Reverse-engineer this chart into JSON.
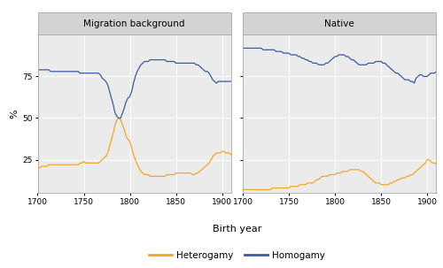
{
  "panel_titles": [
    "Migration background",
    "Native"
  ],
  "xlabel": "Birth year",
  "ylabel": "%",
  "xlim": [
    1700,
    1910
  ],
  "ylim": [
    5,
    100
  ],
  "yticks": [
    25,
    50,
    75
  ],
  "xticks": [
    1700,
    1750,
    1800,
    1850,
    1900
  ],
  "heterogamy_color": "#F5A623",
  "homogamy_color": "#3B5BA5",
  "background_color": "#EBEBEB",
  "panel_header_color": "#D3D3D3",
  "grid_color": "#FFFFFF",
  "legend_labels": [
    "Heterogamy",
    "Homogamy"
  ],
  "mig_heterogamy_x": [
    1700,
    1702,
    1704,
    1706,
    1708,
    1710,
    1712,
    1714,
    1716,
    1718,
    1720,
    1722,
    1724,
    1726,
    1728,
    1730,
    1732,
    1734,
    1736,
    1738,
    1740,
    1742,
    1744,
    1746,
    1748,
    1750,
    1752,
    1754,
    1756,
    1758,
    1760,
    1762,
    1764,
    1766,
    1768,
    1770,
    1772,
    1774,
    1776,
    1778,
    1780,
    1782,
    1784,
    1786,
    1788,
    1790,
    1792,
    1794,
    1796,
    1798,
    1800,
    1802,
    1804,
    1806,
    1808,
    1810,
    1812,
    1814,
    1816,
    1818,
    1820,
    1822,
    1824,
    1826,
    1828,
    1830,
    1832,
    1834,
    1836,
    1838,
    1840,
    1842,
    1844,
    1846,
    1848,
    1850,
    1852,
    1854,
    1856,
    1858,
    1860,
    1862,
    1864,
    1866,
    1868,
    1870,
    1872,
    1874,
    1876,
    1878,
    1880,
    1882,
    1884,
    1886,
    1888,
    1890,
    1892,
    1894,
    1896,
    1898,
    1900,
    1902,
    1904,
    1906,
    1908,
    1910
  ],
  "mig_heterogamy_y": [
    20,
    20,
    21,
    21,
    21,
    21,
    22,
    22,
    22,
    22,
    22,
    22,
    22,
    22,
    22,
    22,
    22,
    22,
    22,
    22,
    22,
    22,
    22,
    23,
    23,
    24,
    23,
    23,
    23,
    23,
    23,
    23,
    23,
    23,
    24,
    25,
    26,
    27,
    29,
    33,
    37,
    41,
    46,
    49,
    50,
    49,
    46,
    43,
    39,
    37,
    36,
    32,
    28,
    25,
    22,
    20,
    18,
    17,
    16,
    16,
    16,
    15,
    15,
    15,
    15,
    15,
    15,
    15,
    15,
    15,
    16,
    16,
    16,
    16,
    16,
    17,
    17,
    17,
    17,
    17,
    17,
    17,
    17,
    17,
    16,
    16,
    17,
    17,
    18,
    19,
    20,
    21,
    22,
    23,
    25,
    27,
    28,
    29,
    29,
    29,
    30,
    30,
    29,
    29,
    29,
    28
  ],
  "mig_homogamy_x": [
    1700,
    1702,
    1704,
    1706,
    1708,
    1710,
    1712,
    1714,
    1716,
    1718,
    1720,
    1722,
    1724,
    1726,
    1728,
    1730,
    1732,
    1734,
    1736,
    1738,
    1740,
    1742,
    1744,
    1746,
    1748,
    1750,
    1752,
    1754,
    1756,
    1758,
    1760,
    1762,
    1764,
    1766,
    1768,
    1770,
    1772,
    1774,
    1776,
    1778,
    1780,
    1782,
    1784,
    1786,
    1788,
    1790,
    1792,
    1794,
    1796,
    1798,
    1800,
    1802,
    1804,
    1806,
    1808,
    1810,
    1812,
    1814,
    1816,
    1818,
    1820,
    1822,
    1824,
    1826,
    1828,
    1830,
    1832,
    1834,
    1836,
    1838,
    1840,
    1842,
    1844,
    1846,
    1848,
    1850,
    1852,
    1854,
    1856,
    1858,
    1860,
    1862,
    1864,
    1866,
    1868,
    1870,
    1872,
    1874,
    1876,
    1878,
    1880,
    1882,
    1884,
    1886,
    1888,
    1890,
    1892,
    1894,
    1896,
    1898,
    1900,
    1902,
    1904,
    1906,
    1908,
    1910
  ],
  "mig_homogamy_y": [
    79,
    79,
    79,
    79,
    79,
    79,
    79,
    78,
    78,
    78,
    78,
    78,
    78,
    78,
    78,
    78,
    78,
    78,
    78,
    78,
    78,
    78,
    78,
    77,
    77,
    77,
    77,
    77,
    77,
    77,
    77,
    77,
    77,
    77,
    76,
    74,
    73,
    72,
    70,
    66,
    62,
    58,
    53,
    51,
    50,
    50,
    53,
    56,
    60,
    62,
    63,
    66,
    71,
    75,
    78,
    80,
    82,
    83,
    84,
    84,
    84,
    85,
    85,
    85,
    85,
    85,
    85,
    85,
    85,
    85,
    84,
    84,
    84,
    84,
    84,
    83,
    83,
    83,
    83,
    83,
    83,
    83,
    83,
    83,
    83,
    83,
    82,
    82,
    81,
    80,
    79,
    78,
    78,
    77,
    75,
    73,
    72,
    71,
    72,
    72,
    72,
    72,
    72,
    72,
    72,
    72
  ],
  "nat_heterogamy_x": [
    1700,
    1702,
    1704,
    1706,
    1708,
    1710,
    1712,
    1714,
    1716,
    1718,
    1720,
    1722,
    1724,
    1726,
    1728,
    1730,
    1732,
    1734,
    1736,
    1738,
    1740,
    1742,
    1744,
    1746,
    1748,
    1750,
    1752,
    1754,
    1756,
    1758,
    1760,
    1762,
    1764,
    1766,
    1768,
    1770,
    1772,
    1774,
    1776,
    1778,
    1780,
    1782,
    1784,
    1786,
    1788,
    1790,
    1792,
    1794,
    1796,
    1798,
    1800,
    1802,
    1804,
    1806,
    1808,
    1810,
    1812,
    1814,
    1816,
    1818,
    1820,
    1822,
    1824,
    1826,
    1828,
    1830,
    1832,
    1834,
    1836,
    1838,
    1840,
    1842,
    1844,
    1846,
    1848,
    1850,
    1852,
    1854,
    1856,
    1858,
    1860,
    1862,
    1864,
    1866,
    1868,
    1870,
    1872,
    1874,
    1876,
    1878,
    1880,
    1882,
    1884,
    1886,
    1888,
    1890,
    1892,
    1894,
    1896,
    1898,
    1900,
    1902,
    1904,
    1906,
    1908,
    1910
  ],
  "nat_heterogamy_y": [
    7,
    7,
    7,
    7,
    7,
    7,
    7,
    7,
    7,
    7,
    7,
    7,
    7,
    7,
    7,
    7,
    8,
    8,
    8,
    8,
    8,
    8,
    8,
    8,
    8,
    8,
    9,
    9,
    9,
    9,
    9,
    10,
    10,
    10,
    10,
    11,
    11,
    11,
    11,
    12,
    13,
    13,
    14,
    15,
    15,
    15,
    15,
    16,
    16,
    16,
    16,
    17,
    17,
    17,
    18,
    18,
    18,
    18,
    19,
    19,
    19,
    19,
    19,
    19,
    18,
    18,
    17,
    16,
    15,
    14,
    13,
    12,
    11,
    11,
    11,
    10,
    10,
    10,
    10,
    10,
    11,
    11,
    12,
    12,
    13,
    13,
    14,
    14,
    14,
    15,
    15,
    16,
    16,
    17,
    18,
    19,
    20,
    21,
    22,
    23,
    25,
    25,
    24,
    23,
    23,
    22
  ],
  "nat_homogamy_x": [
    1700,
    1702,
    1704,
    1706,
    1708,
    1710,
    1712,
    1714,
    1716,
    1718,
    1720,
    1722,
    1724,
    1726,
    1728,
    1730,
    1732,
    1734,
    1736,
    1738,
    1740,
    1742,
    1744,
    1746,
    1748,
    1750,
    1752,
    1754,
    1756,
    1758,
    1760,
    1762,
    1764,
    1766,
    1768,
    1770,
    1772,
    1774,
    1776,
    1778,
    1780,
    1782,
    1784,
    1786,
    1788,
    1790,
    1792,
    1794,
    1796,
    1798,
    1800,
    1802,
    1804,
    1806,
    1808,
    1810,
    1812,
    1814,
    1816,
    1818,
    1820,
    1822,
    1824,
    1826,
    1828,
    1830,
    1832,
    1834,
    1836,
    1838,
    1840,
    1842,
    1844,
    1846,
    1848,
    1850,
    1852,
    1854,
    1856,
    1858,
    1860,
    1862,
    1864,
    1866,
    1868,
    1870,
    1872,
    1874,
    1876,
    1878,
    1880,
    1882,
    1884,
    1886,
    1888,
    1890,
    1892,
    1894,
    1896,
    1898,
    1900,
    1902,
    1904,
    1906,
    1908,
    1910
  ],
  "nat_homogamy_y": [
    92,
    92,
    92,
    92,
    92,
    92,
    92,
    92,
    92,
    92,
    92,
    91,
    91,
    91,
    91,
    91,
    91,
    91,
    90,
    90,
    90,
    90,
    89,
    89,
    89,
    89,
    88,
    88,
    88,
    88,
    87,
    87,
    86,
    86,
    85,
    85,
    84,
    84,
    83,
    83,
    83,
    82,
    82,
    82,
    82,
    83,
    83,
    84,
    85,
    86,
    87,
    87,
    88,
    88,
    88,
    88,
    87,
    87,
    86,
    85,
    85,
    84,
    83,
    82,
    82,
    82,
    82,
    82,
    83,
    83,
    83,
    83,
    84,
    84,
    84,
    84,
    83,
    83,
    82,
    81,
    80,
    79,
    78,
    77,
    77,
    76,
    75,
    74,
    73,
    73,
    73,
    72,
    72,
    71,
    74,
    75,
    76,
    76,
    75,
    75,
    75,
    76,
    77,
    77,
    77,
    78
  ]
}
